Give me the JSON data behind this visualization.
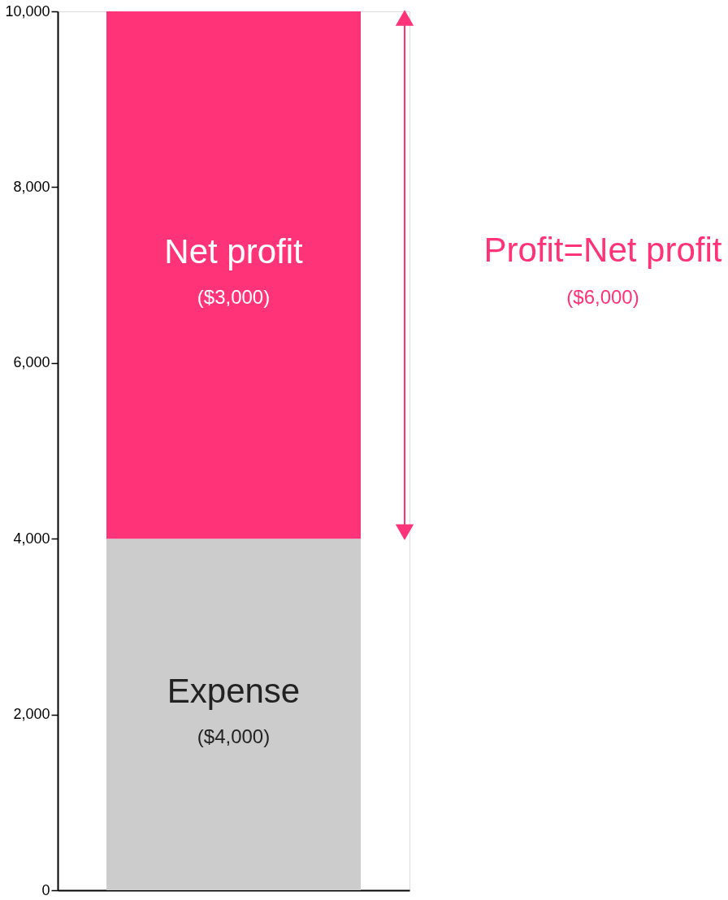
{
  "chart_data": {
    "type": "bar",
    "stacked": true,
    "categories": [
      null
    ],
    "series": [
      {
        "name": "Expense",
        "color": "#cccccc",
        "values": [
          4000
        ],
        "value_labels": [
          "($4,000)"
        ]
      },
      {
        "name": "Net profit",
        "color": "#ff3377",
        "values": [
          6000
        ],
        "value_labels": [
          null
        ]
      }
    ],
    "annotations": [
      "Profit=Net profit",
      "($6,000)",
      "($3,000)"
    ],
    "ylim": [
      0,
      10000
    ],
    "yticks": [
      0,
      {
        "value": 2000,
        "label": "2,000"
      },
      {
        "value": 4000,
        "label": "4,000"
      },
      {
        "value": 6000,
        "label": "6,000"
      },
      {
        "value": 8000,
        "label": "8,000"
      },
      {
        "value": 10000,
        "label": "10,000"
      }
    ],
    "tick_labels": "y",
    "grid": false,
    "legend": false
  }
}
